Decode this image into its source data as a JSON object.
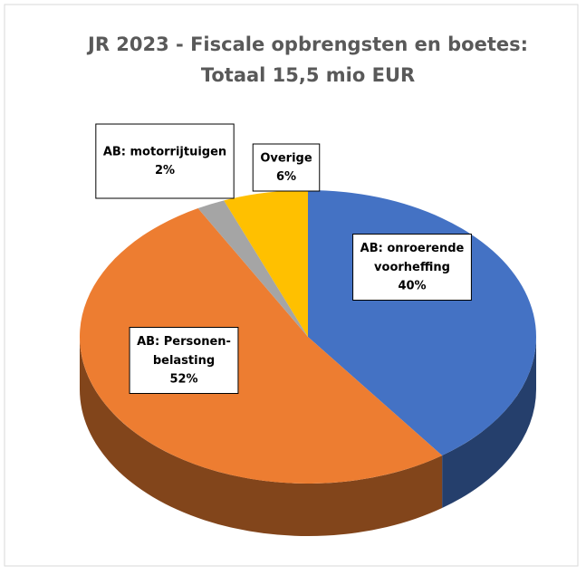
{
  "chart_data": {
    "type": "pie3d",
    "title": [
      "JR 2023 - Fiscale opbrengsten en boetes:",
      "Totaal 15,5 mio EUR"
    ],
    "categories": [
      "AB: onroerende voorheffing",
      "AB: Personen-belasting",
      "AB: motorrijtuigen",
      "Overige"
    ],
    "values": [
      40,
      52,
      2,
      6
    ],
    "value_labels": [
      "40%",
      "52%",
      "2%",
      "6%"
    ],
    "colors": [
      "#4472c4",
      "#ed7d31",
      "#a5a5a5",
      "#ffc000"
    ]
  }
}
